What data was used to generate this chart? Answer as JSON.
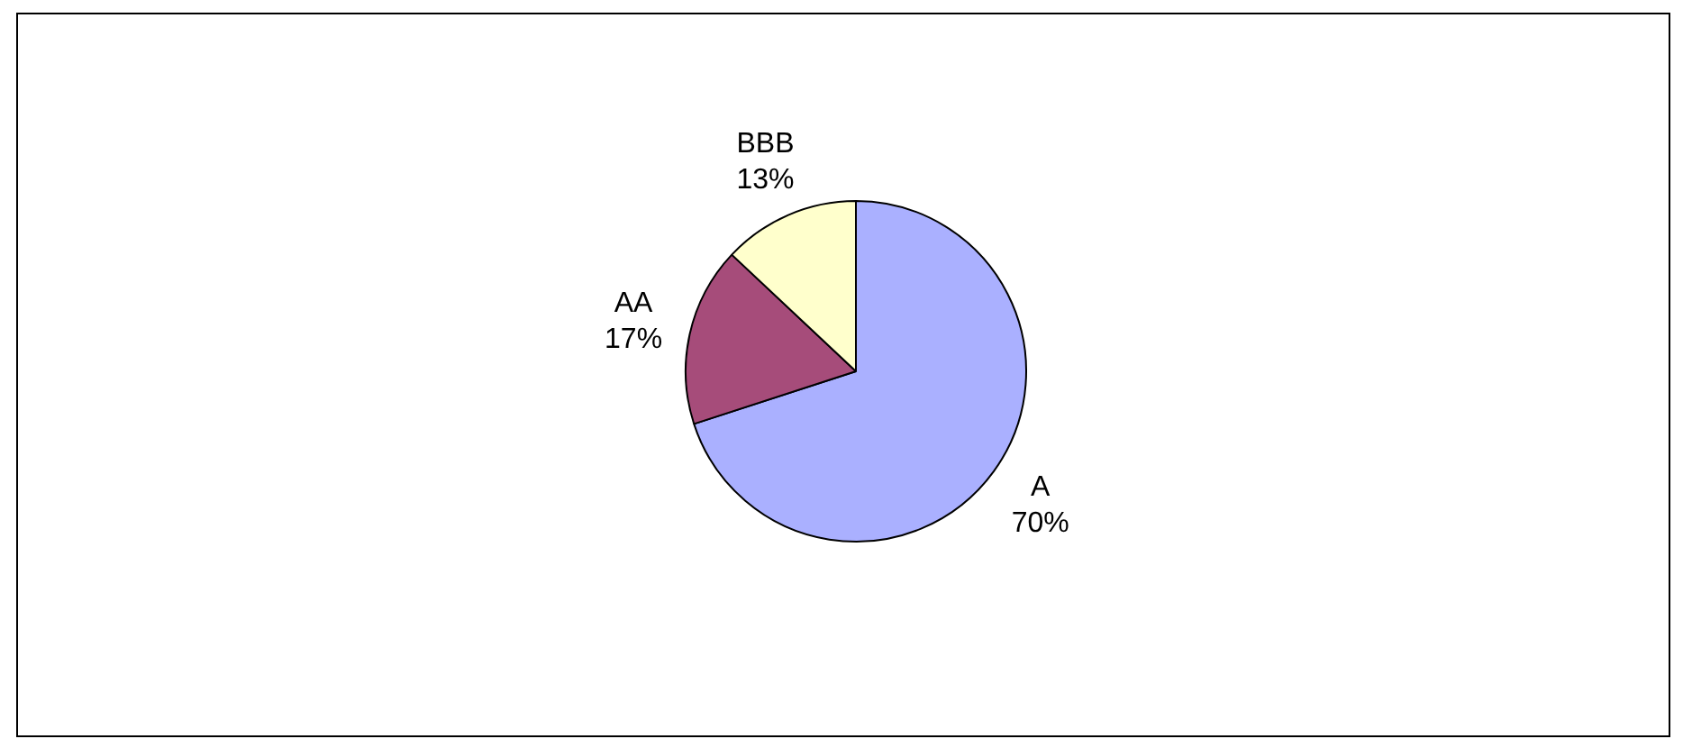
{
  "chart_data": {
    "type": "pie",
    "categories": [
      "A",
      "AA",
      "BBB"
    ],
    "values": [
      70,
      17,
      13
    ],
    "colors": [
      "#aab0ff",
      "#a64c7a",
      "#ffffcc"
    ],
    "value_labels": [
      "70%",
      "17%",
      "13%"
    ],
    "legend": false
  }
}
